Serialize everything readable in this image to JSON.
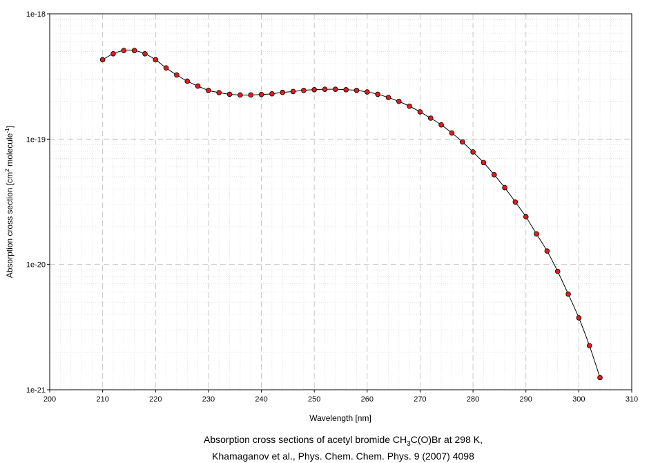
{
  "chart_data": {
    "type": "line",
    "caption_lines": [
      {
        "segments": [
          {
            "text": "Absorption cross sections of acetyl bromide CH",
            "style": "normal"
          },
          {
            "text": "3",
            "style": "sub"
          },
          {
            "text": "C(O)Br at 298 K,",
            "style": "normal"
          }
        ]
      },
      {
        "segments": [
          {
            "text": "Khamaganov et al., Phys. Chem. Chem. Phys. 9 (2007) 4098",
            "style": "normal"
          }
        ]
      }
    ],
    "xlabel": "Wavelength [nm]",
    "ylabel_segments": [
      {
        "text": "Absorption cross section [cm",
        "style": "normal"
      },
      {
        "text": "2",
        "style": "sup"
      },
      {
        "text": " molecule",
        "style": "normal"
      },
      {
        "text": "-1",
        "style": "sup"
      },
      {
        "text": "]",
        "style": "normal"
      }
    ],
    "xlim": [
      200,
      310
    ],
    "ylim": [
      1e-21,
      1e-18
    ],
    "yscale": "log",
    "x_ticks": [
      200,
      210,
      220,
      230,
      240,
      250,
      260,
      270,
      280,
      290,
      300,
      310
    ],
    "x_tick_labels": [
      "200",
      "210",
      "220",
      "230",
      "240",
      "250",
      "260",
      "270",
      "280",
      "290",
      "300",
      "310"
    ],
    "y_ticks": [
      1e-21,
      1e-20,
      1e-19,
      1e-18
    ],
    "y_tick_labels": [
      "1e-21",
      "1e-20",
      "1e-19",
      "1e-18"
    ],
    "grid": true,
    "series": [
      {
        "marker_color": "#e41a1c",
        "line_color": "#000000",
        "x": [
          210,
          212,
          214,
          216,
          218,
          220,
          222,
          224,
          226,
          228,
          230,
          232,
          234,
          236,
          238,
          240,
          242,
          244,
          246,
          248,
          250,
          252,
          254,
          256,
          258,
          260,
          262,
          264,
          266,
          268,
          270,
          272,
          274,
          276,
          278,
          280,
          282,
          284,
          286,
          288,
          290,
          292,
          294,
          296,
          298,
          300,
          302,
          304
        ],
        "y": [
          4.3e-19,
          4.8e-19,
          5.1e-19,
          5.1e-19,
          4.8e-19,
          4.3e-19,
          3.7e-19,
          3.25e-19,
          2.9e-19,
          2.65e-19,
          2.45e-19,
          2.35e-19,
          2.28e-19,
          2.25e-19,
          2.25e-19,
          2.27e-19,
          2.3e-19,
          2.36e-19,
          2.4e-19,
          2.45e-19,
          2.48e-19,
          2.5e-19,
          2.5e-19,
          2.48e-19,
          2.45e-19,
          2.38e-19,
          2.28e-19,
          2.15e-19,
          2e-19,
          1.83e-19,
          1.65e-19,
          1.47e-19,
          1.3e-19,
          1.12e-19,
          9.5e-20,
          7.9e-20,
          6.5e-20,
          5.2e-20,
          4.1e-20,
          3.15e-20,
          2.4e-20,
          1.75e-20,
          1.28e-20,
          8.8e-21,
          5.8e-21,
          3.75e-21,
          2.25e-21,
          1.25e-21
        ]
      }
    ]
  }
}
